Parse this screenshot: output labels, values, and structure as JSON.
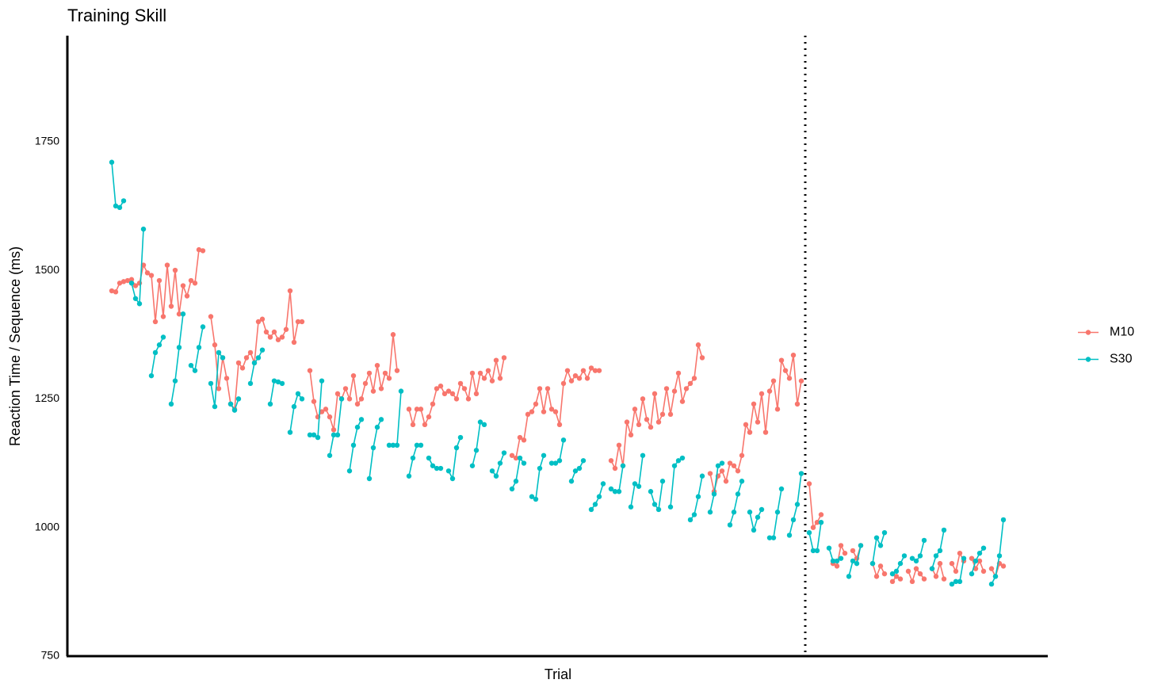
{
  "chart_data": {
    "type": "line",
    "title": "Training Skill",
    "x_label": "Trial",
    "y_label": "Reaction Time / Sequence (ms)",
    "xlim": [
      -10.2,
      237.2
    ],
    "ylim": [
      750,
      1956
    ],
    "yticks": [
      750,
      1000,
      1250,
      1500,
      1750
    ],
    "grid": false,
    "legend": "right",
    "vline_x": 176,
    "series": [
      {
        "name": "M10",
        "color": "#F8766D",
        "x": [
          1,
          2,
          3,
          4,
          5,
          6,
          7,
          8,
          9,
          10,
          11,
          12,
          13,
          14,
          15,
          16,
          17,
          18,
          19,
          20,
          21,
          22,
          23,
          24,
          25,
          26,
          27,
          28,
          29,
          30,
          31,
          32,
          33,
          34,
          35,
          36,
          37,
          38,
          39,
          40,
          41,
          42,
          43,
          44,
          45,
          46,
          47,
          48,
          49,
          50,
          51,
          52,
          53,
          54,
          55,
          56,
          57,
          58,
          59,
          60,
          61,
          62,
          63,
          64,
          65,
          66,
          67,
          68,
          69,
          70,
          71,
          72,
          73,
          74,
          76,
          77,
          78,
          79,
          80,
          81,
          82,
          83,
          84,
          85,
          86,
          87,
          88,
          89,
          90,
          91,
          92,
          93,
          94,
          95,
          96,
          97,
          98,
          99,
          100,
          101,
          102,
          103,
          104,
          105,
          106,
          107,
          108,
          109,
          110,
          111,
          112,
          113,
          114,
          115,
          116,
          117,
          118,
          119,
          120,
          121,
          122,
          123,
          124,
          125,
          127,
          128,
          129,
          130,
          131,
          132,
          133,
          134,
          135,
          136,
          137,
          138,
          139,
          140,
          141,
          142,
          143,
          144,
          145,
          146,
          147,
          148,
          149,
          150,
          151,
          152,
          153,
          154,
          155,
          156,
          157,
          158,
          159,
          160,
          161,
          162,
          163,
          164,
          165,
          166,
          167,
          168,
          169,
          170,
          171,
          172,
          173,
          174,
          175,
          176,
          177,
          178,
          179,
          180,
          181,
          183,
          184,
          185,
          186,
          187,
          188,
          189,
          190,
          191,
          193,
          194,
          195,
          196,
          197,
          198,
          199,
          200,
          201,
          202,
          203,
          204,
          205,
          206,
          207,
          208,
          209,
          210,
          211,
          212,
          213,
          214,
          215,
          216,
          217,
          218,
          219,
          220,
          221,
          222,
          223,
          224,
          225,
          226
        ],
        "values": [
          1460,
          1458,
          1475,
          1478,
          1480,
          1482,
          1470,
          1475,
          1510,
          1495,
          1490,
          1400,
          1480,
          1410,
          1510,
          1430,
          1500,
          1415,
          1470,
          1450,
          1480,
          1475,
          1540,
          1538,
          null,
          1410,
          1355,
          1270,
          1330,
          1290,
          1240,
          1230,
          1320,
          1310,
          1330,
          1340,
          1320,
          1400,
          1405,
          1380,
          1370,
          1380,
          1365,
          1370,
          1385,
          1460,
          1360,
          1400,
          1400,
          null,
          1305,
          1245,
          1215,
          1225,
          1230,
          1215,
          1190,
          1260,
          1250,
          1270,
          1250,
          1295,
          1240,
          1250,
          1280,
          1300,
          1265,
          1315,
          1270,
          1300,
          1290,
          1375,
          1305,
          null,
          1230,
          1200,
          1230,
          1230,
          1200,
          1215,
          1240,
          1270,
          1275,
          1260,
          1265,
          1260,
          1250,
          1280,
          1270,
          1250,
          1300,
          1260,
          1300,
          1290,
          1305,
          1285,
          1325,
          1290,
          1330,
          null,
          1140,
          1135,
          1175,
          1170,
          1220,
          1225,
          1240,
          1270,
          1225,
          1270,
          1230,
          1225,
          1200,
          1280,
          1305,
          1285,
          1295,
          1290,
          1305,
          1290,
          1310,
          1305,
          1305,
          null,
          1130,
          1115,
          1160,
          1120,
          1205,
          1180,
          1230,
          1200,
          1250,
          1210,
          1195,
          1260,
          1205,
          1220,
          1270,
          1220,
          1265,
          1300,
          1245,
          1270,
          1280,
          1290,
          1355,
          1330,
          null,
          1105,
          1070,
          1100,
          1110,
          1090,
          1125,
          1120,
          1110,
          1140,
          1200,
          1185,
          1240,
          1205,
          1260,
          1185,
          1265,
          1285,
          1230,
          1325,
          1305,
          1290,
          1335,
          1240,
          1285,
          null,
          1085,
          1000,
          1010,
          1025,
          null,
          930,
          925,
          965,
          950,
          null,
          955,
          940,
          965,
          null,
          930,
          905,
          925,
          910,
          null,
          895,
          905,
          900,
          null,
          915,
          895,
          920,
          910,
          900,
          null,
          920,
          905,
          930,
          900,
          null,
          930,
          915,
          950,
          935,
          null,
          940,
          920,
          935,
          915,
          null,
          920,
          905,
          930,
          925
        ]
      },
      {
        "name": "S30",
        "color": "#00BFC4",
        "x": [
          1,
          2,
          3,
          4,
          5,
          6,
          7,
          8,
          9,
          10,
          11,
          12,
          13,
          14,
          15,
          16,
          17,
          18,
          19,
          20,
          21,
          22,
          23,
          24,
          25,
          26,
          27,
          28,
          29,
          30,
          31,
          32,
          33,
          34,
          36,
          37,
          38,
          39,
          40,
          41,
          42,
          43,
          44,
          45,
          46,
          47,
          48,
          49,
          50,
          51,
          52,
          53,
          54,
          55,
          56,
          57,
          58,
          59,
          60,
          61,
          62,
          63,
          64,
          65,
          66,
          67,
          68,
          69,
          70,
          71,
          72,
          73,
          74,
          75,
          76,
          77,
          78,
          79,
          80,
          81,
          82,
          83,
          84,
          85,
          86,
          87,
          88,
          89,
          90,
          92,
          93,
          94,
          95,
          96,
          97,
          98,
          99,
          100,
          101,
          102,
          103,
          104,
          105,
          106,
          107,
          108,
          109,
          110,
          111,
          112,
          113,
          114,
          115,
          116,
          117,
          118,
          119,
          120,
          121,
          122,
          123,
          124,
          125,
          126,
          127,
          128,
          129,
          130,
          131,
          132,
          133,
          134,
          135,
          136,
          137,
          138,
          139,
          140,
          141,
          142,
          143,
          144,
          145,
          146,
          147,
          148,
          149,
          150,
          151,
          152,
          153,
          154,
          155,
          156,
          157,
          158,
          159,
          160,
          161,
          162,
          163,
          164,
          165,
          166,
          167,
          168,
          169,
          170,
          171,
          172,
          173,
          174,
          175,
          176,
          177,
          178,
          179,
          180,
          181,
          182,
          183,
          184,
          185,
          186,
          187,
          188,
          189,
          190,
          191,
          193,
          194,
          195,
          196,
          197,
          198,
          199,
          200,
          201,
          202,
          203,
          204,
          205,
          206,
          207,
          208,
          209,
          210,
          211,
          212,
          213,
          214,
          215,
          216,
          217,
          218,
          219,
          220,
          221,
          222,
          223,
          224,
          225,
          226
        ],
        "values": [
          1710,
          1625,
          1622,
          1635,
          null,
          1475,
          1445,
          1435,
          1580,
          null,
          1295,
          1340,
          1355,
          1370,
          null,
          1240,
          1285,
          1350,
          1415,
          null,
          1315,
          1305,
          1350,
          1390,
          null,
          1280,
          1235,
          1340,
          1330,
          null,
          1240,
          1228,
          1250,
          null,
          1280,
          1320,
          1330,
          1345,
          null,
          1240,
          1285,
          1283,
          1280,
          null,
          1185,
          1235,
          1260,
          1250,
          null,
          1180,
          1180,
          1175,
          1285,
          null,
          1140,
          1180,
          1180,
          1250,
          null,
          1110,
          1160,
          1195,
          1210,
          null,
          1095,
          1155,
          1195,
          1210,
          null,
          1160,
          1160,
          1160,
          1265,
          null,
          1100,
          1135,
          1160,
          1160,
          null,
          1135,
          1120,
          1115,
          1115,
          null,
          1110,
          1095,
          1155,
          1175,
          null,
          1120,
          1150,
          1205,
          1200,
          null,
          1110,
          1100,
          1125,
          1145,
          null,
          1075,
          1090,
          1135,
          1125,
          null,
          1060,
          1055,
          1115,
          1140,
          null,
          1125,
          1125,
          1130,
          1170,
          null,
          1090,
          1110,
          1115,
          1130,
          null,
          1035,
          1045,
          1060,
          1085,
          null,
          1075,
          1070,
          1070,
          1120,
          null,
          1040,
          1085,
          1080,
          1140,
          null,
          1070,
          1045,
          1035,
          1090,
          null,
          1040,
          1120,
          1130,
          1135,
          null,
          1015,
          1025,
          1060,
          1100,
          null,
          1030,
          1065,
          1120,
          1125,
          null,
          1005,
          1030,
          1065,
          1090,
          null,
          1030,
          995,
          1020,
          1035,
          null,
          980,
          980,
          1030,
          1075,
          null,
          985,
          1015,
          1045,
          1105,
          null,
          990,
          955,
          955,
          1010,
          null,
          960,
          935,
          935,
          940,
          null,
          905,
          935,
          930,
          965,
          null,
          930,
          980,
          965,
          990,
          null,
          910,
          915,
          930,
          945,
          null,
          940,
          935,
          945,
          975,
          null,
          920,
          945,
          955,
          995,
          null,
          890,
          895,
          895,
          940,
          null,
          910,
          935,
          950,
          960,
          null,
          890,
          905,
          945,
          1015
        ]
      }
    ]
  }
}
